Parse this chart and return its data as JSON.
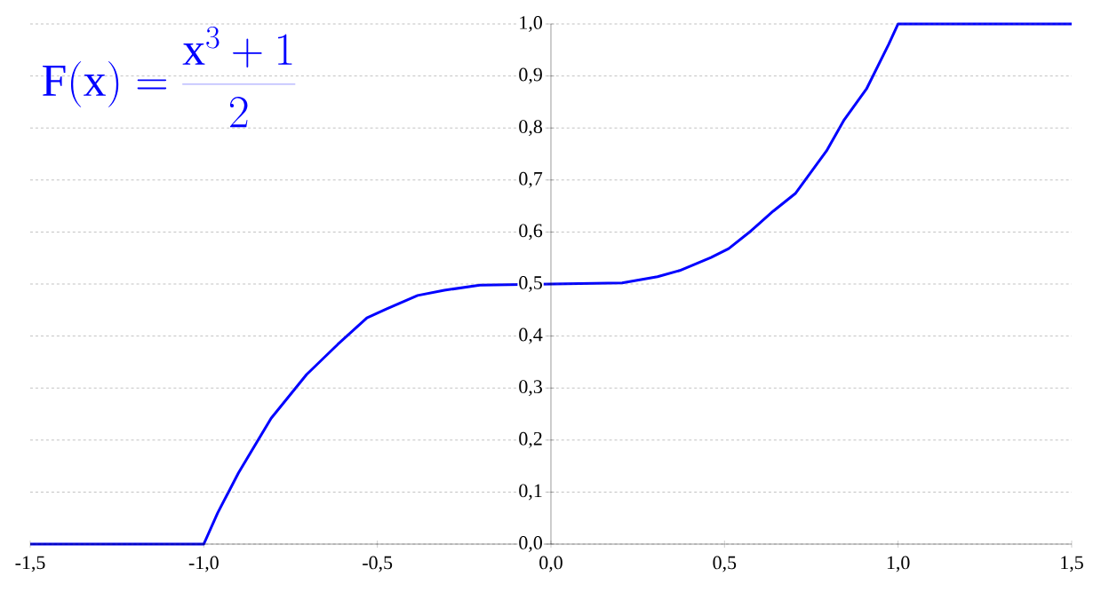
{
  "chart_data": {
    "type": "line",
    "annotations": [
      "\\mathrm{F(x)} = \\frac{\\mathrm{x}^{3}+1}{2}"
    ],
    "x": [
      -1.5,
      -1.05,
      -1.0,
      -0.96,
      -0.9,
      -0.806,
      -0.704,
      -0.614,
      -0.53,
      -0.474,
      -0.384,
      -0.307,
      -0.205,
      0,
      0.205,
      0.307,
      0.371,
      0.461,
      0.512,
      0.576,
      0.64,
      0.704,
      0.794,
      0.845,
      0.909,
      0.973,
      1.0,
      1.5
    ],
    "values": [
      0,
      0,
      0,
      0.06,
      0.137,
      0.242,
      0.326,
      0.384,
      0.435,
      0.452,
      0.478,
      0.488,
      0.498,
      0.5,
      0.502,
      0.514,
      0.526,
      0.551,
      0.568,
      0.602,
      0.64,
      0.674,
      0.756,
      0.816,
      0.875,
      0.961,
      1.0,
      1.0
    ],
    "color": "#0000ff",
    "xlim": [
      -1.5,
      1.5
    ],
    "xticks": [
      {
        "value": -1.5,
        "label": "-1,5"
      },
      {
        "value": -1.0,
        "label": "-1,0"
      },
      {
        "value": -0.5,
        "label": "-0,5"
      },
      {
        "value": 0,
        "label": "0,0"
      },
      {
        "value": 0.5,
        "label": "0,5"
      },
      {
        "value": 1.0,
        "label": "1,0"
      },
      {
        "value": 1.5,
        "label": "1,5"
      }
    ],
    "ylim": [
      0,
      1
    ],
    "yticks": [
      {
        "value": 0,
        "label": "0,0"
      },
      {
        "value": 0.1,
        "label": "0,1"
      },
      {
        "value": 0.2,
        "label": "0,2"
      },
      {
        "value": 0.3,
        "label": "0,3"
      },
      {
        "value": 0.4,
        "label": "0,4"
      },
      {
        "value": 0.5,
        "label": "0,5"
      },
      {
        "value": 0.6,
        "label": "0,6"
      },
      {
        "value": 0.7,
        "label": "0,7"
      },
      {
        "value": 0.8,
        "label": "0,8"
      },
      {
        "value": 0.9,
        "label": "0,9"
      },
      {
        "value": 1.0,
        "label": "1,0"
      }
    ],
    "grid": "y",
    "marker": "none",
    "line_style": "solid"
  }
}
